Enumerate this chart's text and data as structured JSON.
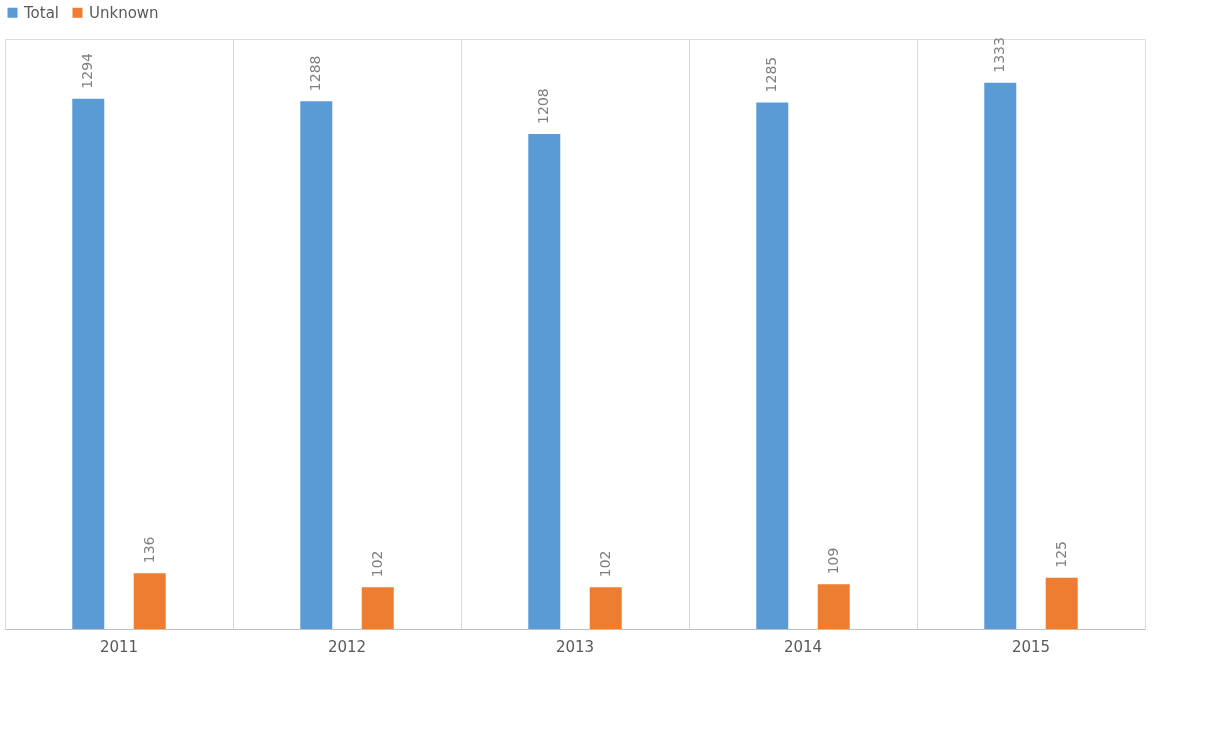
{
  "chart_data": {
    "type": "bar",
    "categories": [
      "2011",
      "2012",
      "2013",
      "2014",
      "2015"
    ],
    "series": [
      {
        "name": "Total",
        "color": "#5b9bd5",
        "values": [
          1294,
          1288,
          1208,
          1285,
          1333
        ]
      },
      {
        "name": "Unknown",
        "color": "#ed7d31",
        "values": [
          136,
          102,
          102,
          109,
          125
        ]
      }
    ],
    "data_labels": true,
    "grid": "x",
    "legend": "top",
    "tick_labels": "x"
  }
}
